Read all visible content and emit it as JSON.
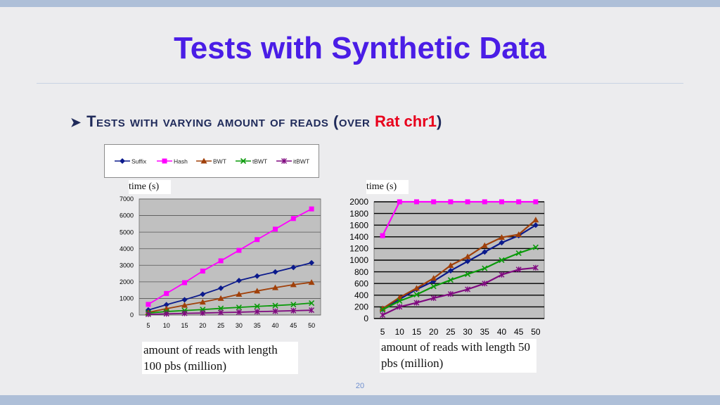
{
  "slide": {
    "title": "Tests with Synthetic Data",
    "bullet_main": "Tests with varying amount of reads (over ",
    "bullet_highlight": "Rat chr1",
    "bullet_end": ")",
    "page_number": "20"
  },
  "colors": {
    "title": "#4a1de6",
    "highlight": "#e8001c",
    "Suffix": "#0b1a8c",
    "Hash": "#ff00ff",
    "BWT": "#a0400a",
    "tBWT": "#0a9a0a",
    "itBWT": "#800a80"
  },
  "legend": [
    "Suffix",
    "Hash",
    "BWT",
    "tBWT",
    "itBWT"
  ],
  "left_chart": {
    "ylabel_text": "time (s)",
    "xlabel_text": "amount of reads with length 100 pbs (million)"
  },
  "right_chart": {
    "ylabel_text": "time (s)",
    "xlabel_text": "amount of reads with length 50 pbs (million)"
  },
  "chart_data": [
    {
      "type": "line",
      "title": "",
      "xlabel": "amount of reads with length 100 pbs (million)",
      "ylabel": "time (s)",
      "x": [
        5,
        10,
        15,
        20,
        25,
        30,
        35,
        40,
        45,
        50
      ],
      "ylim": [
        0,
        7000
      ],
      "yticks": [
        0,
        1000,
        2000,
        3000,
        4000,
        5000,
        6000,
        7000
      ],
      "grid": true,
      "series": [
        {
          "name": "Suffix",
          "values": [
            300,
            620,
            920,
            1250,
            1620,
            2080,
            2350,
            2600,
            2870,
            3150
          ]
        },
        {
          "name": "Hash",
          "values": [
            640,
            1300,
            1950,
            2650,
            3270,
            3900,
            4550,
            5180,
            5820,
            6400
          ]
        },
        {
          "name": "BWT",
          "values": [
            160,
            380,
            590,
            780,
            1000,
            1250,
            1450,
            1650,
            1830,
            1970
          ]
        },
        {
          "name": "tBWT",
          "values": [
            120,
            210,
            270,
            330,
            400,
            460,
            520,
            570,
            630,
            720
          ]
        },
        {
          "name": "itBWT",
          "values": [
            40,
            70,
            100,
            120,
            150,
            170,
            200,
            230,
            260,
            290
          ]
        }
      ]
    },
    {
      "type": "line",
      "title": "",
      "xlabel": "amount of reads with length 50 pbs (million)",
      "ylabel": "time (s)",
      "x": [
        5,
        10,
        15,
        20,
        25,
        30,
        35,
        40,
        45,
        50
      ],
      "ylim": [
        0,
        2000
      ],
      "yticks": [
        0,
        200,
        400,
        600,
        800,
        1000,
        1200,
        1400,
        1600,
        1800,
        2000
      ],
      "grid": true,
      "series": [
        {
          "name": "Suffix",
          "values": [
            160,
            330,
            500,
            640,
            820,
            980,
            1140,
            1300,
            1420,
            1600
          ]
        },
        {
          "name": "Hash",
          "values": [
            1420,
            2020,
            2020,
            2020,
            2020,
            2020,
            2020,
            2020,
            2020,
            2020
          ]
        },
        {
          "name": "BWT",
          "values": [
            170,
            360,
            520,
            690,
            910,
            1060,
            1250,
            1390,
            1440,
            1690
          ]
        },
        {
          "name": "tBWT",
          "values": [
            150,
            300,
            410,
            550,
            660,
            760,
            860,
            1000,
            1120,
            1220
          ]
        },
        {
          "name": "itBWT",
          "values": [
            60,
            200,
            270,
            350,
            420,
            500,
            600,
            750,
            840,
            870
          ]
        }
      ]
    }
  ]
}
